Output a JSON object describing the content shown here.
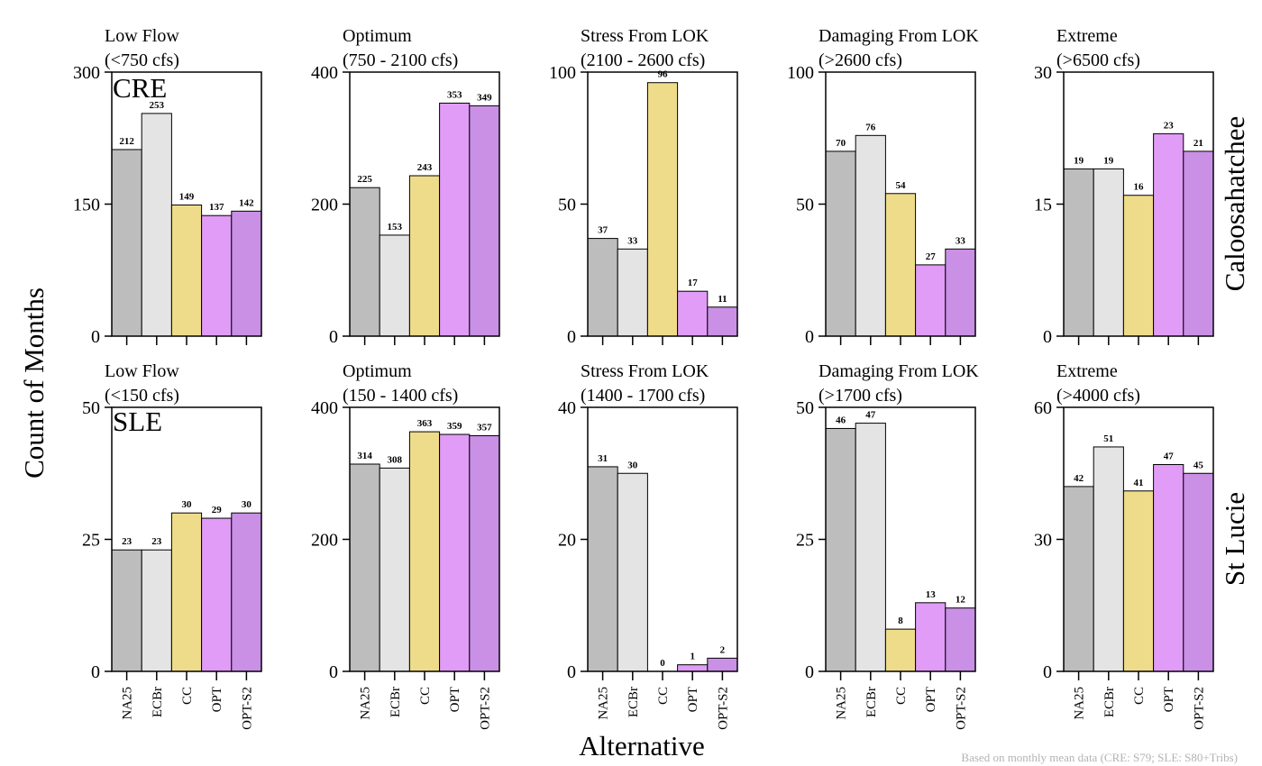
{
  "categories": [
    "NA25",
    "ECBr",
    "CC",
    "OPT",
    "OPT-S2"
  ],
  "colors": {
    "NA25": "#bdbdbd",
    "ECBr": "#e4e4e4",
    "CC": "#eedc8a",
    "OPT": "#e09cf6",
    "OPT-S2": "#c990e6"
  },
  "ylabel": "Count of Months",
  "xlabel": "Alternative",
  "footnote": "Based on monthly mean data (CRE: S79; SLE: S80+Tribs)",
  "rows": [
    {
      "region": "Caloosahatchee",
      "estuary": "CRE"
    },
    {
      "region": "St Lucie",
      "estuary": "SLE"
    }
  ],
  "chart_data": [
    {
      "type": "bar",
      "row": 0,
      "col": 0,
      "title": "Low Flow",
      "subtitle": "(<750 cfs)",
      "ylim": [
        0,
        300
      ],
      "yticks": [
        0,
        150,
        300
      ],
      "values": [
        212,
        253,
        149,
        137,
        142
      ]
    },
    {
      "type": "bar",
      "row": 0,
      "col": 1,
      "title": "Optimum",
      "subtitle": "(750 - 2100 cfs)",
      "ylim": [
        0,
        400
      ],
      "yticks": [
        0,
        200,
        400
      ],
      "values": [
        225,
        153,
        243,
        353,
        349
      ]
    },
    {
      "type": "bar",
      "row": 0,
      "col": 2,
      "title": "Stress From LOK",
      "subtitle": "(2100 - 2600 cfs)",
      "ylim": [
        0,
        100
      ],
      "yticks": [
        0,
        50,
        100
      ],
      "values": [
        37,
        33,
        96,
        17,
        11
      ]
    },
    {
      "type": "bar",
      "row": 0,
      "col": 3,
      "title": "Damaging From LOK",
      "subtitle": "(>2600 cfs)",
      "ylim": [
        0,
        100
      ],
      "yticks": [
        0,
        50,
        100
      ],
      "values": [
        70,
        76,
        54,
        27,
        33
      ]
    },
    {
      "type": "bar",
      "row": 0,
      "col": 4,
      "title": "Extreme",
      "subtitle": "(>6500 cfs)",
      "ylim": [
        0,
        30
      ],
      "yticks": [
        0,
        15,
        30
      ],
      "values": [
        19,
        19,
        16,
        23,
        21
      ]
    },
    {
      "type": "bar",
      "row": 1,
      "col": 0,
      "title": "Low Flow",
      "subtitle": "(<150 cfs)",
      "ylim": [
        0,
        50
      ],
      "yticks": [
        0,
        25,
        50
      ],
      "values": [
        23,
        23,
        30,
        29,
        30
      ]
    },
    {
      "type": "bar",
      "row": 1,
      "col": 1,
      "title": "Optimum",
      "subtitle": "(150 - 1400 cfs)",
      "ylim": [
        0,
        400
      ],
      "yticks": [
        0,
        200,
        400
      ],
      "values": [
        314,
        308,
        363,
        359,
        357
      ]
    },
    {
      "type": "bar",
      "row": 1,
      "col": 2,
      "title": "Stress From LOK",
      "subtitle": "(1400 - 1700 cfs)",
      "ylim": [
        0,
        40
      ],
      "yticks": [
        0,
        20,
        40
      ],
      "values": [
        31,
        30,
        0,
        1,
        2
      ]
    },
    {
      "type": "bar",
      "row": 1,
      "col": 3,
      "title": "Damaging From LOK",
      "subtitle": "(>1700 cfs)",
      "ylim": [
        0,
        50
      ],
      "yticks": [
        0,
        25,
        50
      ],
      "values": [
        46,
        47,
        8,
        13,
        12
      ]
    },
    {
      "type": "bar",
      "row": 1,
      "col": 4,
      "title": "Extreme",
      "subtitle": "(>4000 cfs)",
      "ylim": [
        0,
        60
      ],
      "yticks": [
        0,
        30,
        60
      ],
      "values": [
        42,
        51,
        41,
        47,
        45
      ]
    }
  ]
}
